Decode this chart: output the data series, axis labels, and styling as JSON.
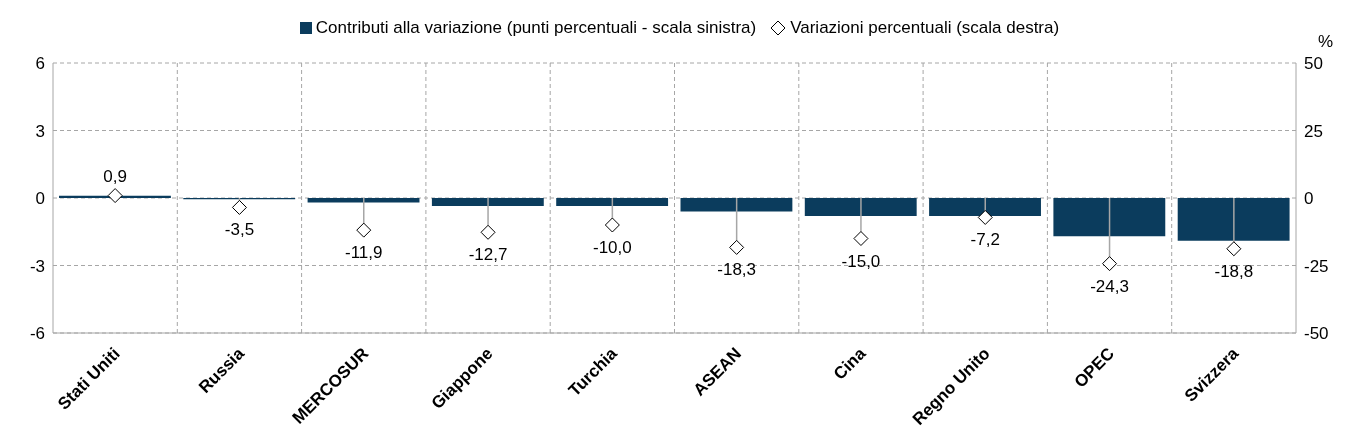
{
  "chart_data": {
    "type": "bar",
    "categories": [
      "Stati Uniti",
      "Russia",
      "MERCOSUR",
      "Giappone",
      "Turchia",
      "ASEAN",
      "Cina",
      "Regno Unito",
      "OPEC",
      "Svizzera"
    ],
    "series": [
      {
        "name": "Contributi alla variazione (punti percentuali - scala sinistra)",
        "color": "#0b3c5d",
        "values": [
          0.1,
          -0.05,
          -0.2,
          -0.35,
          -0.35,
          -0.6,
          -0.8,
          -0.8,
          -1.7,
          -1.9
        ]
      },
      {
        "name": "Variazioni percentuali (scala destra)",
        "type": "lollipop",
        "axis": "y2",
        "color": "#ffffff",
        "marker": "diamond",
        "values": [
          0.9,
          -3.5,
          -11.9,
          -12.7,
          -10.0,
          -18.3,
          -15.0,
          -7.2,
          -24.3,
          -18.8
        ],
        "value_labels": [
          "0,9",
          "-3,5",
          "-11,9",
          "-12,7",
          "-10,0",
          "-18,3",
          "-15,0",
          "-7,2",
          "-24,3",
          "-18,8"
        ]
      }
    ],
    "ylim": [
      -6,
      6
    ],
    "yticks": [
      -6,
      -3,
      0,
      3,
      6
    ],
    "y2lim": [
      -50,
      50
    ],
    "y2ticks": [
      -50,
      -25,
      0,
      25,
      50
    ],
    "y2label": "%",
    "grid": true,
    "legend": "top"
  }
}
